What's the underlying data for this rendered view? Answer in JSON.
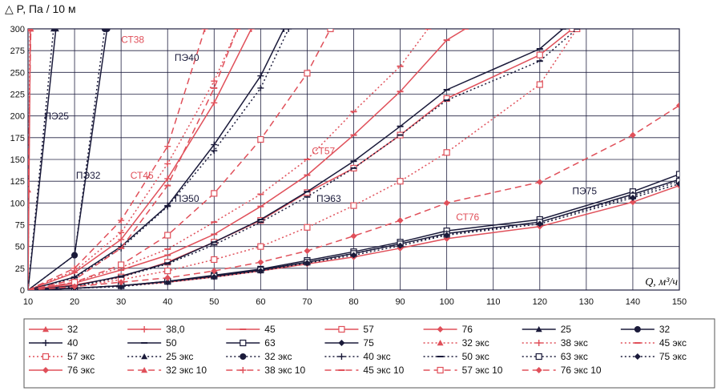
{
  "chart_data": {
    "type": "line",
    "ylabel": "△ P, Па / 10 м",
    "xlabel": "Q, м³/ч",
    "xlim": [
      10,
      150
    ],
    "ylim": [
      0,
      300
    ],
    "x_ticks": [
      10,
      20,
      30,
      40,
      50,
      60,
      70,
      80,
      90,
      100,
      110,
      120,
      130,
      140,
      150
    ],
    "y_ticks": [
      0,
      25,
      50,
      75,
      100,
      125,
      150,
      175,
      200,
      225,
      250,
      275,
      300
    ],
    "grid": true,
    "legend_position": "bottom",
    "colors": {
      "red": "#e0505a",
      "dark": "#1a1a3a",
      "grid": "#202040"
    },
    "annotations": [
      {
        "text": "СТ38",
        "x": 30,
        "y": 284,
        "color": "#e0505a"
      },
      {
        "text": "ПЭ40",
        "x": 41.5,
        "y": 263,
        "color": "#1a1a3a"
      },
      {
        "text": "ПЭ25",
        "x": 13.5,
        "y": 196,
        "color": "#1a1a3a"
      },
      {
        "text": "ПЭ32",
        "x": 20.3,
        "y": 128,
        "color": "#1a1a3a"
      },
      {
        "text": "СТ45",
        "x": 32,
        "y": 128,
        "color": "#e0505a"
      },
      {
        "text": "ПЭ50",
        "x": 41.5,
        "y": 101,
        "color": "#1a1a3a"
      },
      {
        "text": "СТ57",
        "x": 71,
        "y": 156,
        "color": "#e0505a"
      },
      {
        "text": "ПЭ63",
        "x": 72,
        "y": 101,
        "color": "#1a1a3a"
      },
      {
        "text": "ПЭ75",
        "x": 127,
        "y": 110,
        "color": "#1a1a3a"
      },
      {
        "text": "СТ76",
        "x": 102,
        "y": 80,
        "color": "#e0505a"
      }
    ],
    "series": [
      {
        "name": "32",
        "color": "#e0505a",
        "dash": "solid",
        "marker": "triangle",
        "points": [
          [
            10,
            0
          ],
          [
            10.5,
            300
          ]
        ]
      },
      {
        "name": "38,0",
        "color": "#e0505a",
        "dash": "solid",
        "marker": "plus",
        "points": [
          [
            10,
            0
          ],
          [
            20,
            20
          ],
          [
            30,
            58
          ],
          [
            40,
            128
          ],
          [
            50,
            215
          ],
          [
            58,
            300
          ]
        ]
      },
      {
        "name": "45",
        "color": "#e0505a",
        "dash": "solid",
        "marker": "dash",
        "points": [
          [
            10,
            0
          ],
          [
            20,
            8
          ],
          [
            30,
            23
          ],
          [
            40,
            40
          ],
          [
            50,
            64
          ],
          [
            60,
            96
          ],
          [
            70,
            132
          ],
          [
            80,
            178
          ],
          [
            90,
            228
          ],
          [
            100,
            287
          ],
          [
            104,
            300
          ]
        ]
      },
      {
        "name": "57",
        "color": "#e0505a",
        "dash": "solid",
        "marker": "square",
        "points": [
          [
            10,
            0
          ],
          [
            20,
            6
          ],
          [
            30,
            15
          ],
          [
            40,
            32
          ],
          [
            50,
            55
          ],
          [
            60,
            80
          ],
          [
            70,
            112
          ],
          [
            80,
            140
          ],
          [
            90,
            178
          ],
          [
            100,
            220
          ],
          [
            120,
            270
          ],
          [
            127,
            300
          ]
        ]
      },
      {
        "name": "76",
        "color": "#e0505a",
        "dash": "solid",
        "marker": "diamond",
        "points": [
          [
            10,
            0
          ],
          [
            20,
            2
          ],
          [
            30,
            5
          ],
          [
            40,
            9
          ],
          [
            50,
            15
          ],
          [
            60,
            22
          ],
          [
            70,
            30
          ],
          [
            80,
            38
          ],
          [
            90,
            48
          ],
          [
            100,
            59
          ],
          [
            120,
            73
          ],
          [
            140,
            101
          ],
          [
            150,
            120
          ]
        ]
      },
      {
        "name": "25",
        "color": "#1a1a3a",
        "dash": "solid",
        "marker": "triangle",
        "points": [
          [
            10,
            0
          ],
          [
            16,
            300
          ]
        ]
      },
      {
        "name": "32",
        "color": "#1a1a3a",
        "dash": "solid",
        "marker": "circle",
        "points": [
          [
            10,
            0
          ],
          [
            20,
            40
          ],
          [
            27,
            300
          ]
        ]
      },
      {
        "name": "40",
        "color": "#1a1a3a",
        "dash": "solid",
        "marker": "plus",
        "points": [
          [
            10,
            0
          ],
          [
            20,
            15
          ],
          [
            30,
            50
          ],
          [
            40,
            97
          ],
          [
            50,
            167
          ],
          [
            60,
            246
          ],
          [
            65,
            300
          ]
        ]
      },
      {
        "name": "50",
        "color": "#1a1a3a",
        "dash": "solid",
        "marker": "dash",
        "points": [
          [
            10,
            0
          ],
          [
            20,
            5
          ],
          [
            30,
            16
          ],
          [
            40,
            31
          ],
          [
            50,
            55
          ],
          [
            60,
            81
          ],
          [
            70,
            113
          ],
          [
            80,
            148
          ],
          [
            90,
            188
          ],
          [
            100,
            230
          ],
          [
            120,
            277
          ],
          [
            125,
            300
          ]
        ]
      },
      {
        "name": "63",
        "color": "#1a1a3a",
        "dash": "solid",
        "marker": "square",
        "points": [
          [
            10,
            0
          ],
          [
            20,
            2
          ],
          [
            30,
            5
          ],
          [
            40,
            10
          ],
          [
            50,
            17
          ],
          [
            60,
            24
          ],
          [
            70,
            34
          ],
          [
            80,
            44
          ],
          [
            90,
            55
          ],
          [
            100,
            68
          ],
          [
            120,
            81
          ],
          [
            140,
            113
          ],
          [
            150,
            133
          ]
        ]
      },
      {
        "name": "75",
        "color": "#1a1a3a",
        "dash": "solid",
        "marker": "diamond",
        "points": [
          [
            10,
            0
          ],
          [
            20,
            2
          ],
          [
            30,
            5
          ],
          [
            40,
            10
          ],
          [
            50,
            16
          ],
          [
            60,
            23
          ],
          [
            70,
            32
          ],
          [
            80,
            42
          ],
          [
            90,
            53
          ],
          [
            100,
            65
          ],
          [
            120,
            78
          ],
          [
            140,
            110
          ],
          [
            150,
            127
          ]
        ]
      },
      {
        "name": "32 экс",
        "color": "#e0505a",
        "dash": "dot",
        "marker": "triangle",
        "points": [
          [
            10,
            0
          ],
          [
            10.4,
            300
          ]
        ]
      },
      {
        "name": "38 экс",
        "color": "#e0505a",
        "dash": "dot",
        "marker": "plus",
        "points": [
          [
            10,
            0
          ],
          [
            20,
            22
          ],
          [
            30,
            66
          ],
          [
            40,
            145
          ],
          [
            50,
            240
          ],
          [
            55,
            300
          ]
        ]
      },
      {
        "name": "45 экс",
        "color": "#e0505a",
        "dash": "dot",
        "marker": "dash",
        "points": [
          [
            10,
            0
          ],
          [
            20,
            9
          ],
          [
            30,
            26
          ],
          [
            40,
            47
          ],
          [
            50,
            78
          ],
          [
            60,
            110
          ],
          [
            70,
            150
          ],
          [
            80,
            205
          ],
          [
            90,
            257
          ],
          [
            96,
            300
          ]
        ]
      },
      {
        "name": "57 экс",
        "color": "#e0505a",
        "dash": "dot",
        "marker": "square",
        "points": [
          [
            10,
            0
          ],
          [
            20,
            4
          ],
          [
            30,
            12
          ],
          [
            40,
            22
          ],
          [
            50,
            35
          ],
          [
            60,
            50
          ],
          [
            70,
            72
          ],
          [
            80,
            97
          ],
          [
            90,
            125
          ],
          [
            100,
            158
          ],
          [
            120,
            236
          ],
          [
            128,
            300
          ]
        ]
      },
      {
        "name": "25 экс",
        "color": "#1a1a3a",
        "dash": "dot",
        "marker": "triangle",
        "points": [
          [
            10,
            0
          ],
          [
            15.5,
            300
          ]
        ]
      },
      {
        "name": "32 экс",
        "color": "#1a1a3a",
        "dash": "dot",
        "marker": "circle",
        "points": [
          [
            10,
            0
          ],
          [
            20,
            40
          ],
          [
            26.5,
            300
          ]
        ]
      },
      {
        "name": "40 экс",
        "color": "#1a1a3a",
        "dash": "dot",
        "marker": "plus",
        "points": [
          [
            10,
            0
          ],
          [
            20,
            14
          ],
          [
            30,
            48
          ],
          [
            40,
            96
          ],
          [
            50,
            160
          ],
          [
            60,
            232
          ],
          [
            66,
            300
          ]
        ]
      },
      {
        "name": "50 экс",
        "color": "#1a1a3a",
        "dash": "dot",
        "marker": "dash",
        "points": [
          [
            10,
            0
          ],
          [
            20,
            4
          ],
          [
            30,
            15
          ],
          [
            40,
            30
          ],
          [
            50,
            52
          ],
          [
            60,
            78
          ],
          [
            70,
            107
          ],
          [
            80,
            140
          ],
          [
            90,
            178
          ],
          [
            100,
            218
          ],
          [
            120,
            263
          ],
          [
            128,
            300
          ]
        ]
      },
      {
        "name": "63 экс",
        "color": "#1a1a3a",
        "dash": "dot",
        "marker": "square",
        "points": [
          [
            10,
            0
          ],
          [
            20,
            2
          ],
          [
            30,
            5
          ],
          [
            40,
            10
          ],
          [
            50,
            16
          ],
          [
            60,
            23
          ],
          [
            70,
            32
          ],
          [
            80,
            42
          ],
          [
            90,
            53
          ],
          [
            100,
            64
          ],
          [
            120,
            78
          ],
          [
            140,
            108
          ],
          [
            150,
            125
          ]
        ]
      },
      {
        "name": "75 экс",
        "color": "#1a1a3a",
        "dash": "dot",
        "marker": "diamond",
        "points": [
          [
            10,
            0
          ],
          [
            20,
            2
          ],
          [
            30,
            4
          ],
          [
            40,
            9
          ],
          [
            50,
            15
          ],
          [
            60,
            22
          ],
          [
            70,
            31
          ],
          [
            80,
            40
          ],
          [
            90,
            51
          ],
          [
            100,
            63
          ],
          [
            120,
            76
          ],
          [
            140,
            106
          ],
          [
            150,
            122
          ]
        ]
      },
      {
        "name": "76 экс",
        "color": "#e0505a",
        "dash": "solid",
        "marker": "diamond",
        "points": []
      },
      {
        "name": "32 экс 10",
        "color": "#e0505a",
        "dash": "dash",
        "marker": "triangle",
        "points": [
          [
            10,
            0
          ],
          [
            10,
            115
          ],
          [
            10.6,
            300
          ]
        ]
      },
      {
        "name": "38 экс 10",
        "color": "#e0505a",
        "dash": "dash",
        "marker": "plus",
        "points": [
          [
            10,
            0
          ],
          [
            20,
            25
          ],
          [
            30,
            80
          ],
          [
            40,
            165
          ],
          [
            48,
            300
          ]
        ]
      },
      {
        "name": "45 экс 10",
        "color": "#e0505a",
        "dash": "dash",
        "marker": "dash",
        "points": [
          [
            10,
            0
          ],
          [
            20,
            12
          ],
          [
            30,
            48
          ],
          [
            40,
            120
          ],
          [
            50,
            232
          ],
          [
            55,
            300
          ]
        ]
      },
      {
        "name": "57 экс 10",
        "color": "#e0505a",
        "dash": "dash",
        "marker": "square",
        "points": [
          [
            10,
            0
          ],
          [
            20,
            9
          ],
          [
            30,
            29
          ],
          [
            40,
            63
          ],
          [
            50,
            111
          ],
          [
            60,
            173
          ],
          [
            70,
            249
          ],
          [
            75,
            300
          ]
        ]
      },
      {
        "name": "76 экс 10",
        "color": "#e0505a",
        "dash": "dash",
        "marker": "diamond",
        "points": [
          [
            10,
            0
          ],
          [
            20,
            4
          ],
          [
            30,
            9
          ],
          [
            40,
            14
          ],
          [
            50,
            22
          ],
          [
            60,
            32
          ],
          [
            70,
            45
          ],
          [
            80,
            62
          ],
          [
            90,
            80
          ],
          [
            100,
            100
          ],
          [
            120,
            124
          ],
          [
            140,
            178
          ],
          [
            150,
            212
          ]
        ]
      }
    ]
  }
}
